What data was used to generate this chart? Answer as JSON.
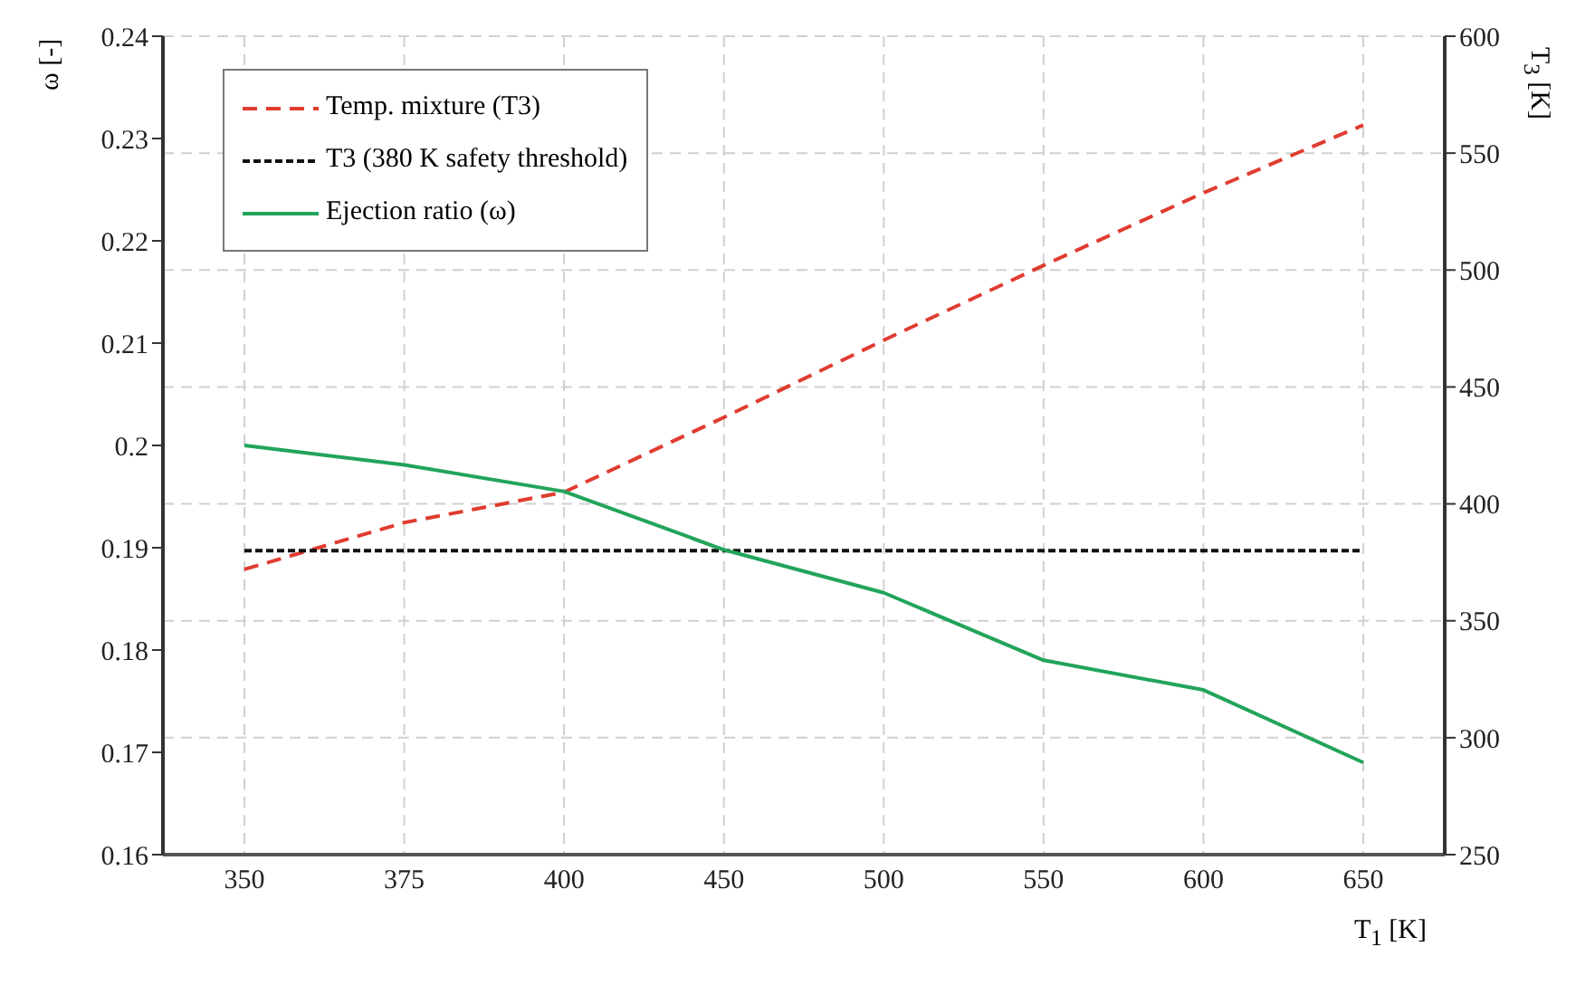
{
  "chart_data": {
    "type": "line",
    "xlabel": "T$_{1}$ [K]",
    "ylabel": "ω [-]",
    "y2label": "T$_{3}$ [K]",
    "categories": [
      "350",
      "375",
      "400",
      "450",
      "500",
      "550",
      "600",
      "650"
    ],
    "series": [
      {
        "name": "Temp. mixture (T3)",
        "color": "#e03c31",
        "axis": "y2",
        "line_style": "dashed",
        "values": [
          372,
          392,
          405,
          437,
          470,
          502,
          533,
          562
        ]
      },
      {
        "name": "T3 (380 K safety threshold)",
        "color": "#111111",
        "axis": "y2",
        "line_style": "dotted",
        "values": [
          380,
          380,
          380,
          380,
          380,
          380,
          380,
          380
        ]
      },
      {
        "name": "Ejection ratio (ω)",
        "color": "#22a45a",
        "line_style": "solid",
        "values": [
          0.2,
          0.1981,
          0.1955,
          0.1898,
          0.1856,
          0.179,
          0.1761,
          0.169
        ]
      }
    ],
    "ylim": [
      0.16,
      0.24
    ],
    "yticks": [
      0.16,
      0.17,
      0.18,
      0.19,
      0.2,
      0.21,
      0.22,
      0.23,
      0.24
    ],
    "y2lim": [
      250,
      600
    ],
    "y2ticks": [
      250,
      300,
      350,
      400,
      450,
      500,
      550,
      600
    ],
    "grid": true,
    "legend": "top left"
  }
}
